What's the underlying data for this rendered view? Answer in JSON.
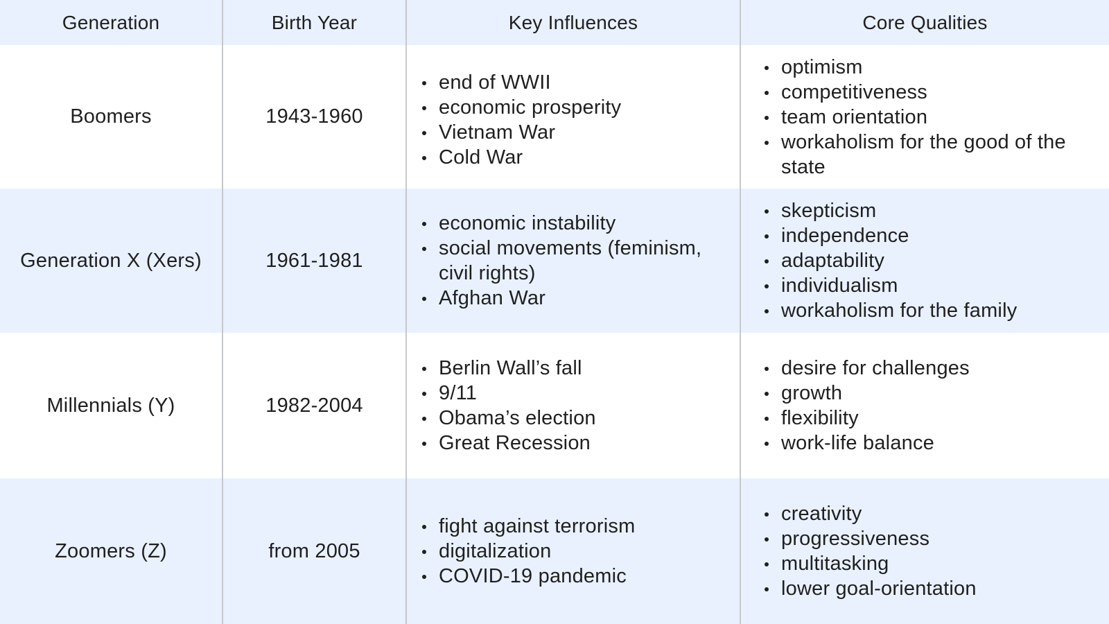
{
  "headers": {
    "generation": "Generation",
    "birth_year": "Birth Year",
    "key_influences": "Key Influences",
    "core_qualities": "Core Qualities"
  },
  "rows": [
    {
      "generation": "Boomers",
      "birth_year": "1943-1960",
      "influences": [
        "end of WWII",
        "economic prosperity",
        "Vietnam War",
        "Cold War"
      ],
      "qualities": [
        "optimism",
        "competitiveness",
        "team orientation",
        "workaholism for the good of the state"
      ]
    },
    {
      "generation": "Generation X (Xers)",
      "birth_year": "1961-1981",
      "influences": [
        "economic instability",
        "social movements (feminism, civil rights)",
        "Afghan War"
      ],
      "qualities": [
        "skepticism",
        "independence",
        "adaptability",
        "individualism",
        "workaholism for the family"
      ]
    },
    {
      "generation": "Millennials (Y)",
      "birth_year": "1982-2004",
      "influences": [
        "Berlin Wall’s fall",
        "9/11",
        "Obama’s election",
        "Great Recession"
      ],
      "qualities": [
        "desire for challenges",
        "growth",
        "flexibility",
        "work-life balance"
      ]
    },
    {
      "generation": "Zoomers (Z)",
      "birth_year": "from 2005",
      "influences": [
        "fight against terrorism",
        "digitalization",
        "COVID-19 pandemic"
      ],
      "qualities": [
        "creativity",
        "progressiveness",
        "multitasking",
        "lower goal-orientation"
      ]
    }
  ],
  "colors": {
    "shaded_row": "#e9f1fe",
    "plain_row": "#ffffff",
    "divider": "#c5c8cd",
    "text": "#1f1f1f"
  }
}
